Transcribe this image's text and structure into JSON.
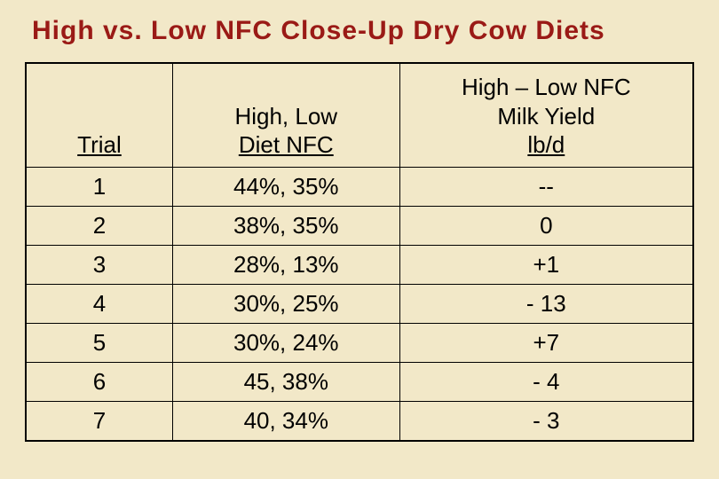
{
  "title": "High vs. Low NFC Close-Up Dry Cow Diets",
  "table": {
    "type": "table",
    "background_color": "#f2e8c8",
    "title_color": "#9a1a16",
    "text_color": "#000000",
    "border_color": "#000000",
    "title_fontsize": 30,
    "cell_fontsize": 26,
    "columns": [
      {
        "key": "trial",
        "label_lines": [
          "Trial"
        ],
        "underline_last": true,
        "width_pct": 22
      },
      {
        "key": "diet",
        "label_lines": [
          "High, Low",
          "Diet NFC"
        ],
        "underline_last": true,
        "width_pct": 34
      },
      {
        "key": "yield",
        "label_lines": [
          "High – Low NFC",
          "Milk Yield",
          " lb/d"
        ],
        "underline_last": true,
        "width_pct": 44
      }
    ],
    "rows": [
      {
        "trial": "1",
        "diet": "44%, 35%",
        "yield": "--"
      },
      {
        "trial": "2",
        "diet": "38%, 35%",
        "yield": "0"
      },
      {
        "trial": "3",
        "diet": "28%, 13%",
        "yield": "+1"
      },
      {
        "trial": "4",
        "diet": "30%, 25%",
        "yield": "- 13"
      },
      {
        "trial": "5",
        "diet": "30%, 24%",
        "yield": "+7"
      },
      {
        "trial": "6",
        "diet": "45, 38%",
        "yield": "- 4"
      },
      {
        "trial": "7",
        "diet": "40, 34%",
        "yield": "- 3"
      }
    ]
  }
}
